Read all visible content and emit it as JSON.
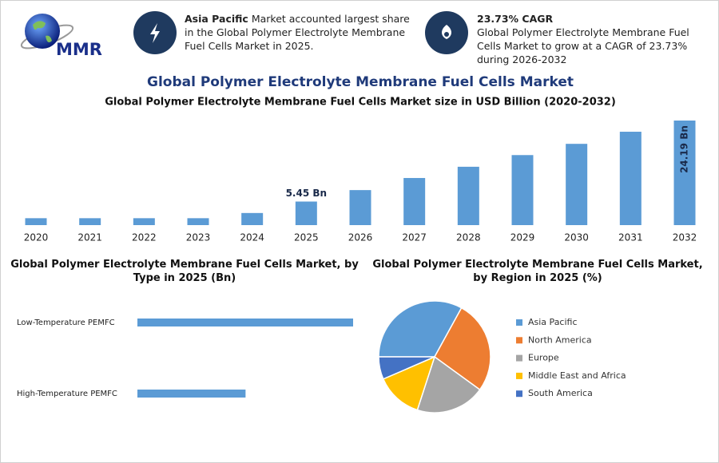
{
  "header": {
    "logo": "MMR",
    "highlights": [
      {
        "bold": "Asia Pacific",
        "text": "Market accounted largest share in the Global Polymer Electrolyte Membrane Fuel Cells Market in 2025."
      },
      {
        "bold": "23.73% CAGR",
        "text": "Global Polymer Electrolyte Membrane Fuel Cells Market to grow at a CAGR of 23.73% during 2026-2032"
      }
    ]
  },
  "title": "Global Polymer Electrolyte Membrane Fuel Cells Market",
  "chart_data": [
    {
      "type": "bar",
      "title": "Global Polymer Electrolyte Membrane Fuel Cells Market size in USD Billion (2020-2032)",
      "categories": [
        "2020",
        "2021",
        "2022",
        "2023",
        "2024",
        "2025",
        "2026",
        "2027",
        "2028",
        "2029",
        "2030",
        "2031",
        "2032"
      ],
      "values": [
        1.6,
        1.6,
        1.6,
        1.6,
        2.8,
        5.45,
        8.1,
        10.9,
        13.5,
        16.2,
        18.8,
        21.6,
        24.19
      ],
      "value_labels": [
        null,
        null,
        null,
        null,
        null,
        "5.45 Bn",
        null,
        null,
        null,
        null,
        null,
        null,
        "24.19 Bn"
      ],
      "color": "#5b9bd5"
    },
    {
      "type": "barh",
      "title": "Global Polymer Electrolyte Membrane Fuel Cells Market, by Type in 2025 (Bn)",
      "categories": [
        "Low-Temperature PEMFC",
        "High-Temperature PEMFC"
      ],
      "values": [
        3.63,
        1.82
      ],
      "color": "#5b9bd5"
    },
    {
      "type": "pie",
      "title": "Global Polymer Electrolyte Membrane Fuel Cells Market, by Region in 2025 (%)",
      "categories": [
        "Asia Pacific",
        "North America",
        "Europe",
        "Middle East and Africa",
        "South America"
      ],
      "values": [
        33,
        27,
        20,
        13.5,
        6.5
      ],
      "colors": [
        "#5b9bd5",
        "#ed7d31",
        "#a5a5a5",
        "#ffc000",
        "#4472c4"
      ]
    }
  ]
}
